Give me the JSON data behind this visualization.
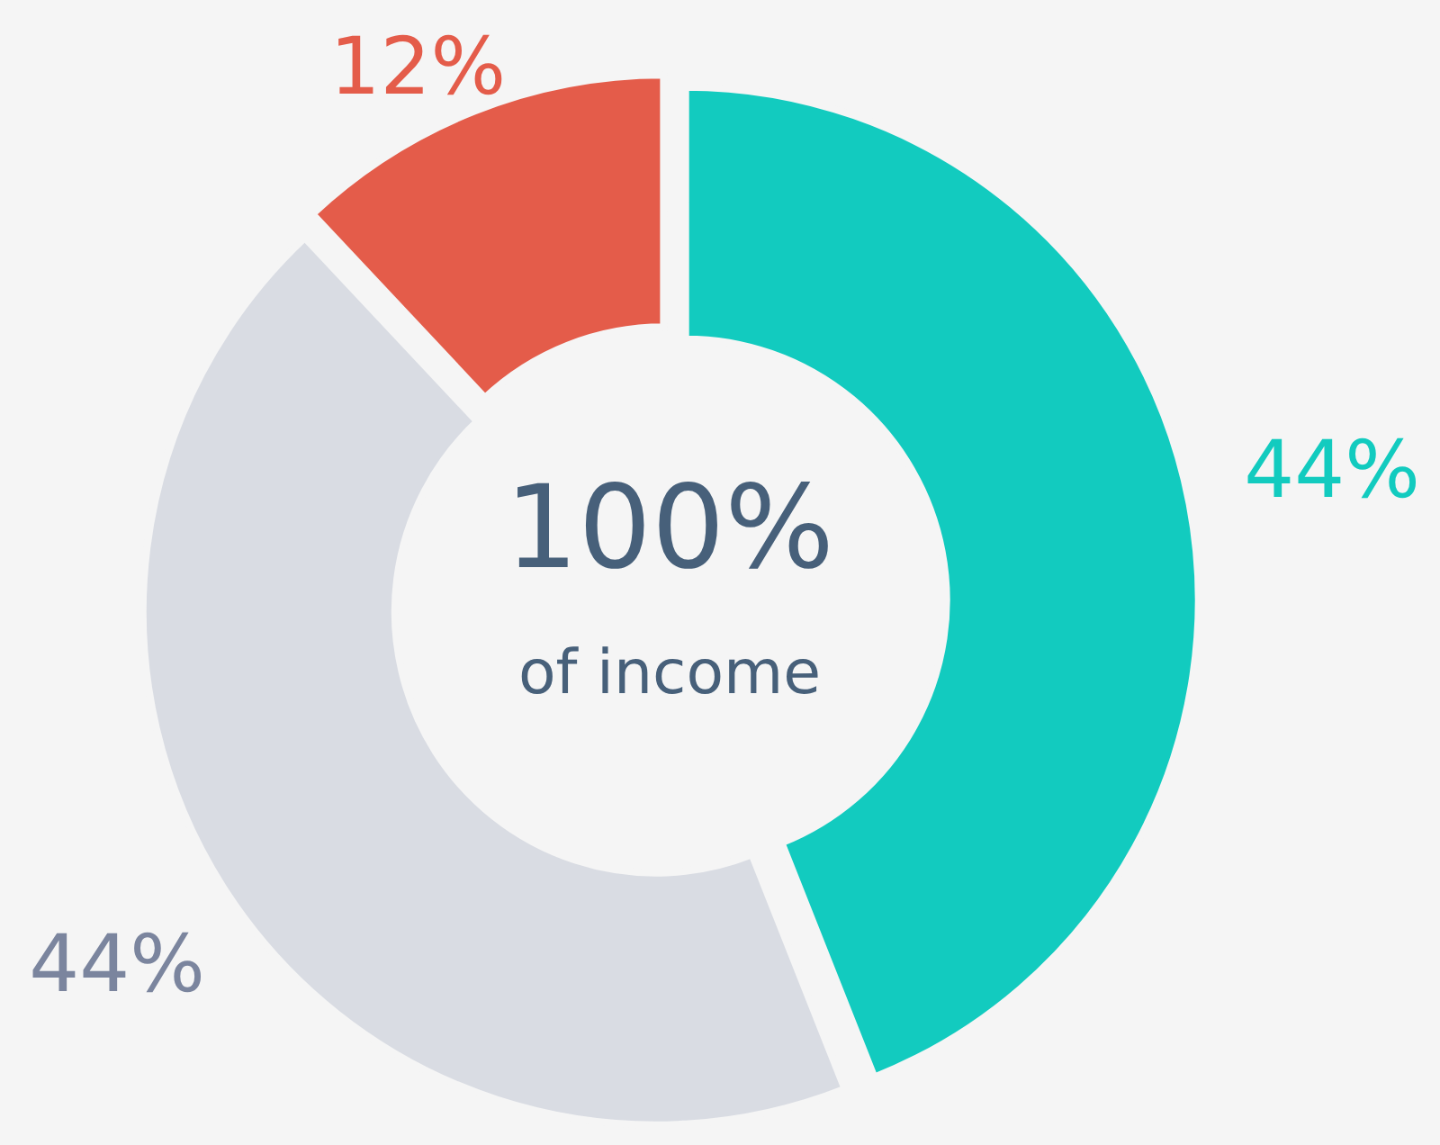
{
  "chart_data": {
    "type": "donut",
    "categories": [
      null,
      null,
      null
    ],
    "values": [
      44,
      44,
      12
    ],
    "colors": [
      "#12cbbf",
      "#d9dce3",
      "#e45c4a"
    ],
    "value_labels": [
      "44%",
      "44%",
      "12%"
    ],
    "annotations": [
      "100%",
      "of income"
    ]
  }
}
